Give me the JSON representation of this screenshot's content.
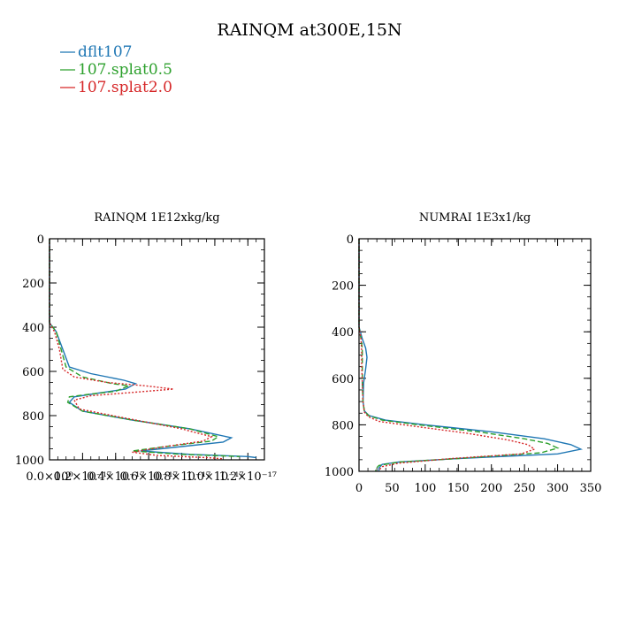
{
  "figure": {
    "title": "RAINQM at300E,15N",
    "legend": [
      {
        "label": "dflt107",
        "color": "#1f77b4",
        "dash": "solid"
      },
      {
        "label": "107.splat0.5",
        "color": "#2ca02c",
        "dash": "dashed"
      },
      {
        "label": "107.splat2.0",
        "color": "#d62728",
        "dash": "dotted"
      }
    ]
  },
  "chart_data": [
    {
      "type": "line",
      "title": "RAINQM  1E12xkg/kg",
      "xlabel": "",
      "ylabel": "",
      "xlim": [
        0,
        1.3e-17
      ],
      "ylim": [
        1000,
        0
      ],
      "x_ticks": [
        0,
        2e-18,
        4e-18,
        6e-18,
        8e-18,
        1e-17,
        1.2e-17
      ],
      "x_tick_labels": [
        "0.0×10⁰",
        "0.2×10⁻¹⁷",
        "0.4×10⁻¹⁷",
        "0.6×10⁻¹⁷",
        "0.8×10⁻¹⁷",
        "1.0×10⁻¹⁷",
        "1.2×10⁻¹⁷"
      ],
      "y_ticks": [
        0,
        200,
        400,
        600,
        800,
        1000
      ],
      "y_tick_labels": [
        "0",
        "200",
        "400",
        "600",
        "800",
        "1000"
      ],
      "series": [
        {
          "name": "dflt107",
          "color": "#1f77b4",
          "dash": "solid",
          "x": [
            0,
            0,
            4e-19,
            8e-19,
            1.2e-18,
            2.5e-18,
            4.5e-18,
            5.2e-18,
            4.6e-18,
            2.8e-18,
            1.5e-18,
            1.2e-18,
            2e-18,
            5e-18,
            8.5e-18,
            1.1e-17,
            1.05e-17,
            8e-18,
            5.5e-18,
            8.5e-18,
            1.2e-17,
            1.25e-17
          ],
          "y": [
            0,
            380,
            420,
            500,
            580,
            610,
            640,
            655,
            680,
            700,
            715,
            740,
            780,
            820,
            860,
            900,
            920,
            940,
            960,
            975,
            985,
            990
          ]
        },
        {
          "name": "107.splat0.5",
          "color": "#2ca02c",
          "dash": "dashed",
          "x": [
            0,
            0,
            4e-19,
            7e-19,
            1e-18,
            2e-18,
            3.8e-18,
            4.8e-18,
            4e-18,
            2.2e-18,
            1.2e-18,
            1.1e-18,
            2e-18,
            5e-18,
            8.5e-18,
            1.02e-17,
            9.8e-18,
            7.5e-18,
            5e-18,
            8e-18,
            1.15e-17
          ],
          "y": [
            0,
            380,
            420,
            500,
            580,
            625,
            655,
            665,
            690,
            705,
            715,
            740,
            780,
            820,
            860,
            895,
            915,
            935,
            960,
            975,
            985
          ]
        },
        {
          "name": "107.splat2.0",
          "color": "#d62728",
          "dash": "dotted",
          "x": [
            0,
            0,
            3e-19,
            6e-19,
            8e-19,
            1.5e-18,
            3.5e-18,
            5.8e-18,
            7.5e-18,
            5e-18,
            2.5e-18,
            1.5e-18,
            1.8e-18,
            4.5e-18,
            8e-18,
            9.8e-18,
            9.3e-18,
            7e-18,
            5e-18,
            6.5e-18,
            9.5e-18,
            1.05e-17
          ],
          "y": [
            0,
            380,
            420,
            500,
            590,
            625,
            650,
            665,
            680,
            695,
            710,
            730,
            770,
            810,
            860,
            895,
            915,
            940,
            965,
            980,
            990,
            995
          ]
        }
      ]
    },
    {
      "type": "line",
      "title": "NUMRAI  1E3x1/kg",
      "xlabel": "",
      "ylabel": "",
      "xlim": [
        0,
        350
      ],
      "ylim": [
        1000,
        0
      ],
      "x_ticks": [
        0,
        50,
        100,
        150,
        200,
        250,
        300,
        350
      ],
      "x_tick_labels": [
        "0",
        "50",
        "100",
        "150",
        "200",
        "250",
        "300",
        "350"
      ],
      "y_ticks": [
        0,
        200,
        400,
        600,
        800,
        1000
      ],
      "y_tick_labels": [
        "0",
        "200",
        "400",
        "600",
        "800",
        "1000"
      ],
      "series": [
        {
          "name": "dflt107",
          "color": "#1f77b4",
          "dash": "solid",
          "x": [
            0,
            0,
            5,
            10,
            12,
            10,
            7,
            6,
            8,
            15,
            40,
            100,
            200,
            280,
            320,
            335,
            300,
            150,
            60,
            35,
            30,
            30
          ],
          "y": [
            0,
            380,
            430,
            470,
            510,
            560,
            620,
            700,
            740,
            760,
            780,
            800,
            830,
            860,
            885,
            905,
            925,
            945,
            960,
            970,
            985,
            1000
          ]
        },
        {
          "name": "107.splat0.5",
          "color": "#2ca02c",
          "dash": "dashed",
          "x": [
            0,
            0,
            3,
            5,
            5,
            5,
            6,
            8,
            14,
            35,
            90,
            180,
            250,
            285,
            300,
            275,
            150,
            60,
            30,
            25,
            25
          ],
          "y": [
            0,
            380,
            430,
            470,
            520,
            620,
            700,
            740,
            760,
            780,
            800,
            830,
            860,
            880,
            900,
            920,
            945,
            960,
            975,
            990,
            1000
          ]
        },
        {
          "name": "107.splat2.0",
          "color": "#d62728",
          "dash": "dotted",
          "x": [
            0,
            0,
            3,
            4,
            4,
            5,
            6,
            8,
            14,
            30,
            80,
            160,
            225,
            255,
            265,
            245,
            140,
            60,
            35,
            30
          ],
          "y": [
            0,
            380,
            430,
            480,
            540,
            620,
            700,
            745,
            765,
            785,
            805,
            835,
            865,
            885,
            905,
            925,
            945,
            965,
            980,
            995
          ]
        }
      ]
    }
  ]
}
